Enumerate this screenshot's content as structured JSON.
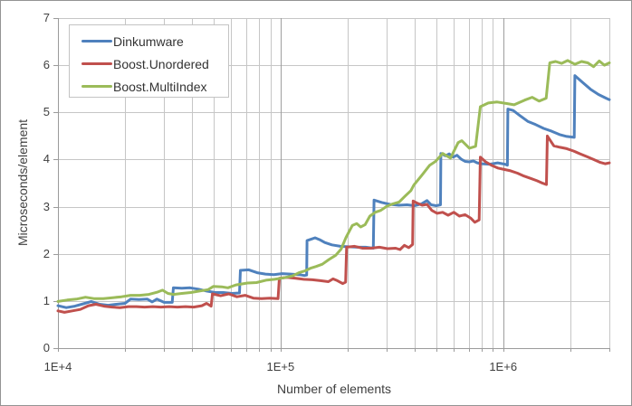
{
  "chart_data": {
    "type": "line",
    "title": "",
    "x_label": "Number of elements",
    "y_label": "Microseconds/element",
    "x_scale": "log",
    "x_range": [
      10000,
      3000000
    ],
    "y_range": [
      0,
      7
    ],
    "grid": true,
    "legend_position": "top-left",
    "colors": {
      "gridline": "#c6c6c6",
      "axis": "#9b9b9b",
      "text": "#3f3f3f"
    },
    "x_ticks": [
      {
        "label": "1E+4",
        "value": 10000
      },
      {
        "label": "1E+5",
        "value": 100000
      },
      {
        "label": "1E+6",
        "value": 1000000
      }
    ],
    "y_ticks": [
      {
        "label": "0",
        "value": 0
      },
      {
        "label": "1",
        "value": 1
      },
      {
        "label": "2",
        "value": 2
      },
      {
        "label": "3",
        "value": 3
      },
      {
        "label": "4",
        "value": 4
      },
      {
        "label": "5",
        "value": 5
      },
      {
        "label": "6",
        "value": 6
      },
      {
        "label": "7",
        "value": 7
      }
    ],
    "series": [
      {
        "name": "Dinkumware",
        "color": "#4F81BD",
        "points": [
          [
            10000,
            0.9
          ],
          [
            10900,
            0.86
          ],
          [
            11900,
            0.89
          ],
          [
            13000,
            0.94
          ],
          [
            14100,
            0.99
          ],
          [
            15400,
            0.93
          ],
          [
            16800,
            0.91
          ],
          [
            18300,
            0.93
          ],
          [
            20000,
            0.95
          ],
          [
            21200,
            1.04
          ],
          [
            23100,
            1.03
          ],
          [
            25200,
            1.04
          ],
          [
            26500,
            0.98
          ],
          [
            27800,
            1.04
          ],
          [
            30000,
            0.97
          ],
          [
            32600,
            0.97
          ],
          [
            33000,
            1.28
          ],
          [
            36000,
            1.27
          ],
          [
            39200,
            1.28
          ],
          [
            42800,
            1.25
          ],
          [
            46600,
            1.21
          ],
          [
            50800,
            1.18
          ],
          [
            55400,
            1.18
          ],
          [
            60400,
            1.16
          ],
          [
            65400,
            1.17
          ],
          [
            66000,
            1.65
          ],
          [
            72000,
            1.66
          ],
          [
            78500,
            1.6
          ],
          [
            85600,
            1.57
          ],
          [
            93300,
            1.56
          ],
          [
            101700,
            1.58
          ],
          [
            110900,
            1.57
          ],
          [
            120900,
            1.56
          ],
          [
            128000,
            1.54
          ],
          [
            131000,
            1.55
          ],
          [
            131500,
            2.28
          ],
          [
            137000,
            2.31
          ],
          [
            143000,
            2.34
          ],
          [
            150000,
            2.3
          ],
          [
            158000,
            2.24
          ],
          [
            170000,
            2.19
          ],
          [
            186000,
            2.16
          ],
          [
            202000,
            2.15
          ],
          [
            221000,
            2.14
          ],
          [
            241000,
            2.14
          ],
          [
            261000,
            2.12
          ],
          [
            263000,
            3.14
          ],
          [
            285000,
            3.09
          ],
          [
            310000,
            3.05
          ],
          [
            340000,
            3.03
          ],
          [
            370000,
            3.04
          ],
          [
            400000,
            3.02
          ],
          [
            430000,
            3.06
          ],
          [
            455000,
            3.13
          ],
          [
            475000,
            3.04
          ],
          [
            500000,
            3.02
          ],
          [
            523000,
            3.04
          ],
          [
            525000,
            4.13
          ],
          [
            550000,
            4.08
          ],
          [
            572000,
            4.12
          ],
          [
            596000,
            4.05
          ],
          [
            620000,
            4.09
          ],
          [
            647000,
            4.01
          ],
          [
            675000,
            3.96
          ],
          [
            705000,
            3.95
          ],
          [
            735000,
            3.97
          ],
          [
            765000,
            3.93
          ],
          [
            800000,
            3.91
          ],
          [
            870000,
            3.9
          ],
          [
            945000,
            3.93
          ],
          [
            1020000,
            3.9
          ],
          [
            1045000,
            3.88
          ],
          [
            1050000,
            5.07
          ],
          [
            1110000,
            5.04
          ],
          [
            1190000,
            4.93
          ],
          [
            1290000,
            4.81
          ],
          [
            1400000,
            4.74
          ],
          [
            1520000,
            4.66
          ],
          [
            1650000,
            4.6
          ],
          [
            1790000,
            4.53
          ],
          [
            1930000,
            4.49
          ],
          [
            2085000,
            4.47
          ],
          [
            2100000,
            5.78
          ],
          [
            2280000,
            5.63
          ],
          [
            2470000,
            5.49
          ],
          [
            2680000,
            5.38
          ],
          [
            2900000,
            5.3
          ],
          [
            3000000,
            5.27
          ]
        ]
      },
      {
        "name": "Boost.Unordered",
        "color": "#C0504D",
        "points": [
          [
            10000,
            0.79
          ],
          [
            10700,
            0.76
          ],
          [
            11600,
            0.79
          ],
          [
            12600,
            0.82
          ],
          [
            13700,
            0.9
          ],
          [
            14800,
            0.93
          ],
          [
            16100,
            0.89
          ],
          [
            17500,
            0.87
          ],
          [
            19000,
            0.86
          ],
          [
            20700,
            0.88
          ],
          [
            22500,
            0.88
          ],
          [
            24500,
            0.87
          ],
          [
            26700,
            0.88
          ],
          [
            29000,
            0.87
          ],
          [
            31600,
            0.88
          ],
          [
            34400,
            0.87
          ],
          [
            37400,
            0.88
          ],
          [
            40700,
            0.87
          ],
          [
            44300,
            0.9
          ],
          [
            46500,
            0.95
          ],
          [
            48800,
            0.89
          ],
          [
            49400,
            1.15
          ],
          [
            53800,
            1.11
          ],
          [
            58500,
            1.15
          ],
          [
            63700,
            1.09
          ],
          [
            69300,
            1.12
          ],
          [
            75500,
            1.06
          ],
          [
            82100,
            1.05
          ],
          [
            89400,
            1.06
          ],
          [
            97500,
            1.05
          ],
          [
            98700,
            1.48
          ],
          [
            107000,
            1.5
          ],
          [
            117000,
            1.48
          ],
          [
            127000,
            1.46
          ],
          [
            139000,
            1.45
          ],
          [
            151000,
            1.43
          ],
          [
            164000,
            1.41
          ],
          [
            172000,
            1.47
          ],
          [
            180000,
            1.43
          ],
          [
            190000,
            1.37
          ],
          [
            196000,
            1.4
          ],
          [
            198000,
            2.14
          ],
          [
            215000,
            2.16
          ],
          [
            234000,
            2.12
          ],
          [
            255000,
            2.12
          ],
          [
            278000,
            2.14
          ],
          [
            302000,
            2.11
          ],
          [
            329000,
            2.12
          ],
          [
            344000,
            2.09
          ],
          [
            360000,
            2.18
          ],
          [
            377000,
            2.13
          ],
          [
            392000,
            2.2
          ],
          [
            394000,
            3.12
          ],
          [
            413000,
            3.07
          ],
          [
            433000,
            3.03
          ],
          [
            455000,
            3.05
          ],
          [
            478000,
            2.92
          ],
          [
            505000,
            2.86
          ],
          [
            535000,
            2.88
          ],
          [
            566000,
            2.82
          ],
          [
            600000,
            2.88
          ],
          [
            636000,
            2.8
          ],
          [
            674000,
            2.83
          ],
          [
            714000,
            2.76
          ],
          [
            746000,
            2.67
          ],
          [
            780000,
            2.72
          ],
          [
            790000,
            4.05
          ],
          [
            835000,
            3.95
          ],
          [
            885000,
            3.88
          ],
          [
            945000,
            3.82
          ],
          [
            1010000,
            3.79
          ],
          [
            1080000,
            3.76
          ],
          [
            1160000,
            3.71
          ],
          [
            1240000,
            3.65
          ],
          [
            1330000,
            3.6
          ],
          [
            1420000,
            3.55
          ],
          [
            1500000,
            3.5
          ],
          [
            1565000,
            3.47
          ],
          [
            1580000,
            4.5
          ],
          [
            1690000,
            4.29
          ],
          [
            1800000,
            4.26
          ],
          [
            1930000,
            4.23
          ],
          [
            2070000,
            4.18
          ],
          [
            2220000,
            4.12
          ],
          [
            2380000,
            4.06
          ],
          [
            2550000,
            4.0
          ],
          [
            2730000,
            3.94
          ],
          [
            2870000,
            3.91
          ],
          [
            3000000,
            3.93
          ]
        ]
      },
      {
        "name": "Boost.MultiIndex",
        "color": "#9BBB59",
        "points": [
          [
            10000,
            0.99
          ],
          [
            11000,
            1.02
          ],
          [
            12100,
            1.04
          ],
          [
            13300,
            1.08
          ],
          [
            14600,
            1.05
          ],
          [
            16000,
            1.05
          ],
          [
            17600,
            1.07
          ],
          [
            19300,
            1.09
          ],
          [
            21200,
            1.12
          ],
          [
            23300,
            1.12
          ],
          [
            25600,
            1.14
          ],
          [
            28100,
            1.19
          ],
          [
            29500,
            1.23
          ],
          [
            31200,
            1.16
          ],
          [
            33000,
            1.14
          ],
          [
            36000,
            1.16
          ],
          [
            39500,
            1.18
          ],
          [
            43200,
            1.21
          ],
          [
            47300,
            1.24
          ],
          [
            50000,
            1.31
          ],
          [
            54500,
            1.3
          ],
          [
            58000,
            1.28
          ],
          [
            63000,
            1.34
          ],
          [
            71000,
            1.38
          ],
          [
            78000,
            1.39
          ],
          [
            86000,
            1.44
          ],
          [
            94000,
            1.46
          ],
          [
            103000,
            1.49
          ],
          [
            113000,
            1.53
          ],
          [
            121000,
            1.6
          ],
          [
            129000,
            1.64
          ],
          [
            137000,
            1.7
          ],
          [
            144000,
            1.73
          ],
          [
            154000,
            1.78
          ],
          [
            165000,
            1.88
          ],
          [
            177000,
            1.97
          ],
          [
            187000,
            2.1
          ],
          [
            197000,
            2.35
          ],
          [
            210000,
            2.6
          ],
          [
            220000,
            2.64
          ],
          [
            229000,
            2.57
          ],
          [
            240000,
            2.62
          ],
          [
            252000,
            2.8
          ],
          [
            266000,
            2.88
          ],
          [
            282000,
            2.92
          ],
          [
            300000,
            3.01
          ],
          [
            320000,
            3.06
          ],
          [
            341000,
            3.1
          ],
          [
            362000,
            3.22
          ],
          [
            385000,
            3.34
          ],
          [
            397000,
            3.46
          ],
          [
            430000,
            3.66
          ],
          [
            468000,
            3.88
          ],
          [
            497000,
            3.96
          ],
          [
            535000,
            4.13
          ],
          [
            580000,
            4.03
          ],
          [
            628000,
            4.36
          ],
          [
            652000,
            4.4
          ],
          [
            705000,
            4.24
          ],
          [
            752000,
            4.28
          ],
          [
            790000,
            5.12
          ],
          [
            858000,
            5.2
          ],
          [
            940000,
            5.22
          ],
          [
            1030000,
            5.19
          ],
          [
            1120000,
            5.16
          ],
          [
            1250000,
            5.26
          ],
          [
            1350000,
            5.32
          ],
          [
            1450000,
            5.24
          ],
          [
            1560000,
            5.3
          ],
          [
            1620000,
            6.05
          ],
          [
            1720000,
            6.08
          ],
          [
            1830000,
            6.04
          ],
          [
            1950000,
            6.1
          ],
          [
            2100000,
            6.02
          ],
          [
            2250000,
            6.08
          ],
          [
            2400000,
            6.05
          ],
          [
            2550000,
            5.97
          ],
          [
            2700000,
            6.09
          ],
          [
            2850000,
            6.0
          ],
          [
            3000000,
            6.05
          ]
        ]
      }
    ]
  }
}
